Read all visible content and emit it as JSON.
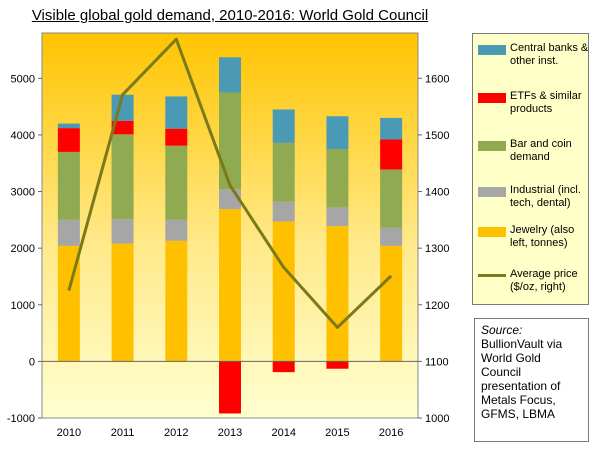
{
  "chart_data": {
    "type": "bar",
    "stacked": true,
    "title": "Visible global gold demand, 2010-2016: World Gold Council",
    "categories": [
      "2010",
      "2011",
      "2012",
      "2013",
      "2014",
      "2015",
      "2016"
    ],
    "series": [
      {
        "name": "Jewelry (also left, tonnes)",
        "color": "#ffc000",
        "values": [
          2040,
          2080,
          2130,
          2690,
          2470,
          2390,
          2040
        ]
      },
      {
        "name": "Industrial (incl. tech, dental)",
        "color": "#a6a6a6",
        "values": [
          460,
          430,
          370,
          350,
          350,
          330,
          320
        ]
      },
      {
        "name": "Bar and coin demand",
        "color": "#8faa50",
        "values": [
          1200,
          1500,
          1310,
          1710,
          1040,
          1030,
          1030
        ]
      },
      {
        "name": "ETFs & similar products",
        "color": "#ff0000",
        "values": [
          420,
          240,
          300,
          -920,
          -190,
          -130,
          530
        ]
      },
      {
        "name": "Central banks & other inst.",
        "color": "#4a9ab5",
        "values": [
          80,
          460,
          570,
          620,
          590,
          580,
          380
        ]
      }
    ],
    "line_series": {
      "name": "Average price ($/oz, right)",
      "color": "#7a7a1a",
      "axis": "right",
      "values": [
        1225,
        1571,
        1669,
        1411,
        1266,
        1160,
        1251
      ]
    },
    "y_left": {
      "min": -1000,
      "max": 5800,
      "ticks": [
        -1000,
        0,
        1000,
        2000,
        3000,
        4000,
        5000
      ]
    },
    "y_right": {
      "min": 1000,
      "max": 1680,
      "ticks": [
        1000,
        1100,
        1200,
        1300,
        1400,
        1500,
        1600
      ]
    },
    "legend_order": [
      4,
      3,
      2,
      1,
      0
    ],
    "legend_placement": "right",
    "gridlines": false
  },
  "source": {
    "head": "Source:",
    "lines": [
      "BullionVault via",
      "World Gold",
      "Council",
      "presentation of",
      "Metals Focus,",
      "GFMS, LBMA"
    ]
  }
}
